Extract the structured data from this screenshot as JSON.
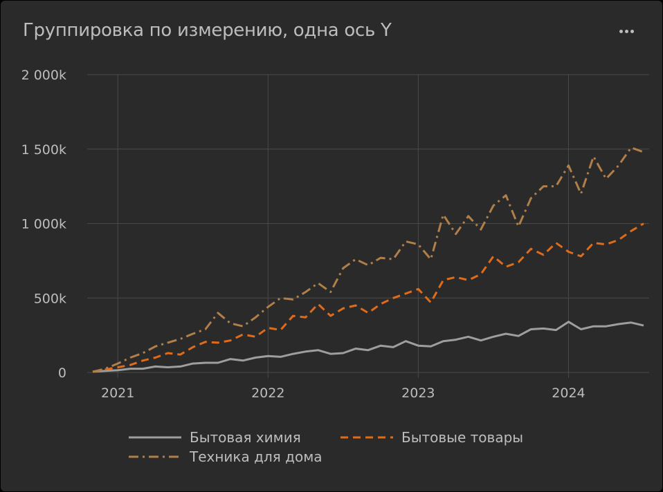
{
  "header": {
    "title": "Группировка по измерению, одна ось Y",
    "menu_icon": "more-dots-icon"
  },
  "colors": {
    "background": "#2a2a2a",
    "grid": "#4a4a4a",
    "text": "#bdbdbd"
  },
  "chart_data": {
    "type": "line",
    "title": "Группировка по измерению, одна ось Y",
    "xlabel": "",
    "ylabel": "",
    "x": [
      "2020-11",
      "2020-12",
      "2021-01",
      "2021-02",
      "2021-03",
      "2021-04",
      "2021-05",
      "2021-06",
      "2021-07",
      "2021-08",
      "2021-09",
      "2021-10",
      "2021-11",
      "2021-12",
      "2022-01",
      "2022-02",
      "2022-03",
      "2022-04",
      "2022-05",
      "2022-06",
      "2022-07",
      "2022-08",
      "2022-09",
      "2022-10",
      "2022-11",
      "2022-12",
      "2023-01",
      "2023-02",
      "2023-03",
      "2023-04",
      "2023-05",
      "2023-06",
      "2023-07",
      "2023-08",
      "2023-09",
      "2023-10",
      "2023-11",
      "2023-12",
      "2024-01",
      "2024-02",
      "2024-03",
      "2024-04",
      "2024-05",
      "2024-06",
      "2024-07"
    ],
    "x_ticks": [
      "2021",
      "2022",
      "2023",
      "2024"
    ],
    "x_tick_dates": [
      "2021-01",
      "2022-01",
      "2023-01",
      "2024-01"
    ],
    "y_ticks": [
      0,
      500000,
      1000000,
      1500000,
      2000000
    ],
    "y_tick_labels": [
      "0",
      "500k",
      "1 000k",
      "1 500k",
      "2 000k"
    ],
    "ylim": [
      0,
      2000000
    ],
    "grid": true,
    "legend_position": "bottom",
    "series": [
      {
        "name": "Бытовая химия",
        "color": "#9e9e9e",
        "dash": "solid",
        "values": [
          5000,
          10000,
          15000,
          25000,
          25000,
          40000,
          35000,
          40000,
          60000,
          65000,
          65000,
          90000,
          80000,
          100000,
          110000,
          105000,
          125000,
          140000,
          150000,
          125000,
          130000,
          160000,
          150000,
          180000,
          170000,
          210000,
          180000,
          175000,
          210000,
          220000,
          240000,
          215000,
          240000,
          260000,
          245000,
          290000,
          295000,
          285000,
          340000,
          290000,
          310000,
          310000,
          325000,
          335000,
          315000
        ]
      },
      {
        "name": "Бытовые товары",
        "color": "#e06c1a",
        "dash": "dashed",
        "values": [
          5000,
          20000,
          35000,
          50000,
          80000,
          100000,
          130000,
          120000,
          170000,
          205000,
          200000,
          215000,
          255000,
          240000,
          300000,
          285000,
          380000,
          370000,
          460000,
          380000,
          430000,
          450000,
          400000,
          460000,
          500000,
          530000,
          560000,
          470000,
          620000,
          640000,
          620000,
          660000,
          780000,
          710000,
          740000,
          830000,
          790000,
          870000,
          810000,
          780000,
          870000,
          860000,
          890000,
          950000,
          1000000
        ]
      },
      {
        "name": "Техника для дома",
        "color": "#b07f4a",
        "dash": "dashdot",
        "values": [
          5000,
          25000,
          60000,
          100000,
          130000,
          175000,
          200000,
          225000,
          260000,
          290000,
          400000,
          330000,
          310000,
          370000,
          440000,
          500000,
          490000,
          540000,
          600000,
          540000,
          700000,
          760000,
          720000,
          770000,
          760000,
          880000,
          860000,
          760000,
          1060000,
          930000,
          1050000,
          960000,
          1120000,
          1190000,
          980000,
          1170000,
          1250000,
          1250000,
          1390000,
          1200000,
          1450000,
          1300000,
          1390000,
          1510000,
          1480000
        ]
      }
    ]
  }
}
